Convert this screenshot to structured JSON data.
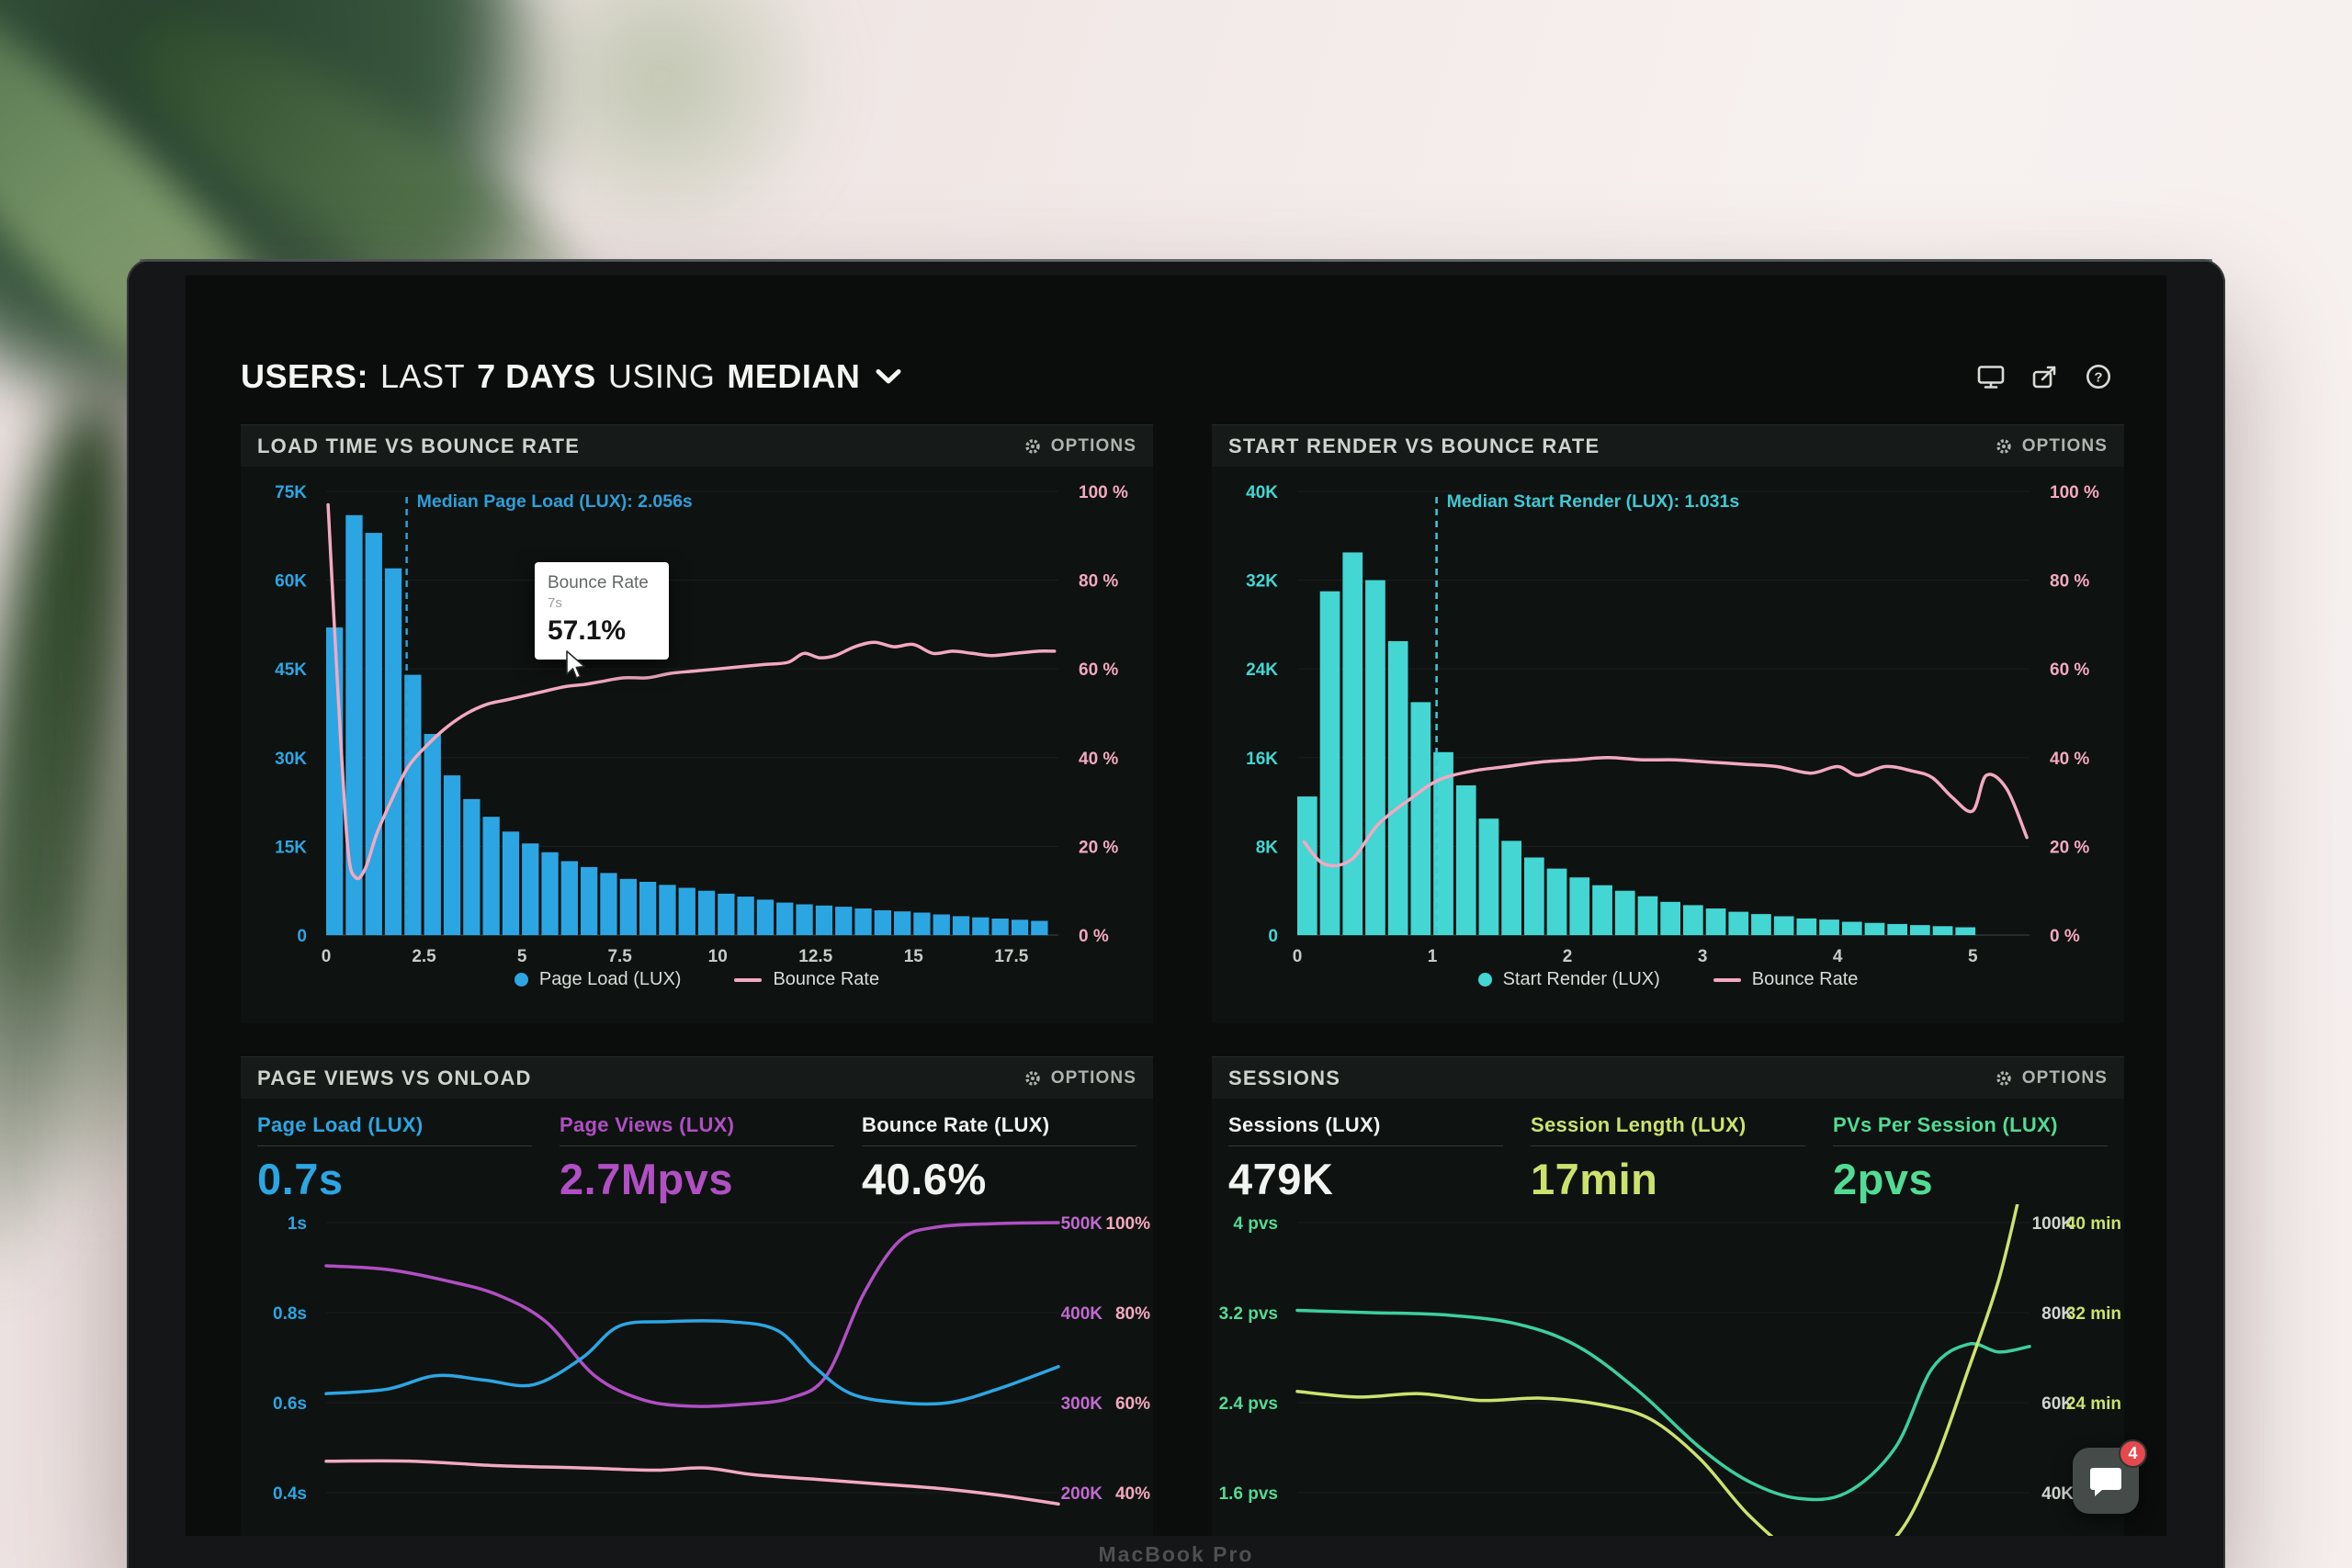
{
  "meta": {
    "device_label": "MacBook Pro"
  },
  "header": {
    "title_segments": [
      {
        "text": "USERS:",
        "weight": "bold"
      },
      {
        "text": "LAST",
        "weight": "light"
      },
      {
        "text": "7 DAYS",
        "weight": "bold"
      },
      {
        "text": "USING",
        "weight": "light"
      },
      {
        "text": "MEDIAN",
        "weight": "bold"
      }
    ],
    "icons": [
      "display-icon",
      "share-icon",
      "help-icon"
    ]
  },
  "launcher": {
    "badge_count": "4"
  },
  "chart_data": [
    {
      "type": "bar",
      "title": "LOAD TIME VS BOUNCE RATE",
      "options_label": "OPTIONS",
      "bin_width": 0.5,
      "bar_series": {
        "name": "Page Load (LUX)",
        "color": "#2ca6e3",
        "values_k": [
          52,
          71,
          68,
          62,
          44,
          34,
          27,
          23,
          20,
          17.5,
          15.5,
          14,
          12.5,
          11.5,
          10.5,
          9.5,
          9,
          8.5,
          8,
          7.5,
          7,
          6.5,
          6,
          5.5,
          5.2,
          5,
          4.8,
          4.5,
          4.2,
          4,
          3.8,
          3.5,
          3.2,
          3,
          2.8,
          2.6,
          2.4
        ]
      },
      "line_series": {
        "name": "Bounce Rate",
        "color": "#f3a9c0",
        "points": [
          [
            0.05,
            97
          ],
          [
            0.3,
            55
          ],
          [
            0.55,
            20
          ],
          [
            0.75,
            13
          ],
          [
            1.0,
            15
          ],
          [
            1.3,
            23
          ],
          [
            1.7,
            31
          ],
          [
            2.1,
            38
          ],
          [
            2.6,
            43
          ],
          [
            3.1,
            47
          ],
          [
            3.6,
            50
          ],
          [
            4.1,
            52
          ],
          [
            4.6,
            53
          ],
          [
            5.1,
            54
          ],
          [
            5.6,
            55
          ],
          [
            6.1,
            56
          ],
          [
            6.6,
            56.5
          ],
          [
            7.0,
            57.1
          ],
          [
            7.6,
            58
          ],
          [
            8.2,
            58
          ],
          [
            8.8,
            59
          ],
          [
            9.4,
            59.5
          ],
          [
            10.0,
            60
          ],
          [
            10.6,
            60.5
          ],
          [
            11.2,
            61
          ],
          [
            11.8,
            61.5
          ],
          [
            12.2,
            63.5
          ],
          [
            12.6,
            62.5
          ],
          [
            13.0,
            63
          ],
          [
            13.5,
            65
          ],
          [
            14.0,
            66
          ],
          [
            14.5,
            65
          ],
          [
            15.0,
            65.5
          ],
          [
            15.5,
            63.5
          ],
          [
            16.0,
            64
          ],
          [
            16.5,
            63.5
          ],
          [
            17.0,
            63
          ],
          [
            17.6,
            63.5
          ],
          [
            18.2,
            64
          ],
          [
            18.6,
            64
          ]
        ]
      },
      "median": {
        "label": "Median Page Load (LUX): 2.056s",
        "value": 2.056,
        "color": "#2d9fd8"
      },
      "left_axis": {
        "ticks": [
          "75K",
          "60K",
          "45K",
          "30K",
          "15K",
          "0"
        ],
        "max_k": 75,
        "color": "#2ca6e3"
      },
      "right_axis": {
        "ticks": [
          "100 %",
          "80 %",
          "60 %",
          "40 %",
          "20 %",
          "0 %"
        ],
        "max_pct": 100,
        "color": "#f3a9c0"
      },
      "x_axis": {
        "ticks": [
          0,
          2.5,
          5,
          7.5,
          10,
          12.5,
          15,
          17.5
        ],
        "range": 18.7
      },
      "legend": [
        {
          "label": "Page Load (LUX)",
          "color": "#2ca6e3",
          "shape": "dot"
        },
        {
          "label": "Bounce Rate",
          "color": "#f3a9c0",
          "shape": "line"
        }
      ],
      "tooltip": {
        "title": "Bounce Rate",
        "x_label": "7s",
        "value": "57.1%"
      }
    },
    {
      "type": "bar",
      "title": "START RENDER VS BOUNCE RATE",
      "options_label": "OPTIONS",
      "bin_width": 0.168,
      "bar_series": {
        "name": "Start Render (LUX)",
        "color": "#43d6d3",
        "values_k": [
          12.5,
          31,
          34.5,
          32,
          26.5,
          21,
          16.5,
          13.5,
          10.5,
          8.5,
          7,
          6,
          5.2,
          4.5,
          4,
          3.5,
          3,
          2.7,
          2.4,
          2.1,
          1.9,
          1.7,
          1.5,
          1.4,
          1.2,
          1.1,
          1,
          0.9,
          0.8,
          0.7
        ]
      },
      "line_series": {
        "name": "Bounce Rate",
        "color": "#f3a9c0",
        "points": [
          [
            0.05,
            21
          ],
          [
            0.2,
            16
          ],
          [
            0.4,
            17
          ],
          [
            0.6,
            25
          ],
          [
            0.85,
            31
          ],
          [
            1.05,
            35
          ],
          [
            1.3,
            37
          ],
          [
            1.55,
            38
          ],
          [
            1.8,
            39
          ],
          [
            2.05,
            39.5
          ],
          [
            2.3,
            40
          ],
          [
            2.55,
            39.5
          ],
          [
            2.8,
            39.5
          ],
          [
            3.05,
            39
          ],
          [
            3.3,
            38.5
          ],
          [
            3.55,
            38
          ],
          [
            3.8,
            36.5
          ],
          [
            4.0,
            38
          ],
          [
            4.15,
            36
          ],
          [
            4.35,
            38
          ],
          [
            4.55,
            37
          ],
          [
            4.7,
            35.5
          ],
          [
            4.85,
            31
          ],
          [
            5.0,
            28
          ],
          [
            5.1,
            36
          ],
          [
            5.25,
            33
          ],
          [
            5.4,
            22
          ]
        ]
      },
      "median": {
        "label": "Median Start Render (LUX): 1.031s",
        "value": 1.031,
        "color": "#3fc9d4"
      },
      "left_axis": {
        "ticks": [
          "40K",
          "32K",
          "24K",
          "16K",
          "8K",
          "0"
        ],
        "max_k": 40,
        "color": "#43d6d3"
      },
      "right_axis": {
        "ticks": [
          "100 %",
          "80 %",
          "60 %",
          "40 %",
          "20 %",
          "0 %"
        ],
        "max_pct": 100,
        "color": "#f3a9c0"
      },
      "x_axis": {
        "ticks": [
          0,
          1,
          2,
          3,
          4,
          5
        ],
        "range": 5.42
      },
      "legend": [
        {
          "label": "Start Render (LUX)",
          "color": "#43d6d3",
          "shape": "dot"
        },
        {
          "label": "Bounce Rate",
          "color": "#f3a9c0",
          "shape": "line"
        }
      ]
    },
    {
      "type": "line",
      "title": "PAGE VIEWS VS ONLOAD",
      "options_label": "OPTIONS",
      "metrics": [
        {
          "label": "Page Load (LUX)",
          "value": "0.7s",
          "color": "#2ca6e3"
        },
        {
          "label": "Page Views (LUX)",
          "value": "2.7Mpvs",
          "color": "#b14fc4"
        },
        {
          "label": "Bounce Rate (LUX)",
          "value": "40.6%",
          "color": "#f2f4f2"
        }
      ],
      "left_axis": {
        "ticks": [
          "1s",
          "0.8s",
          "0.6s",
          "0.4s"
        ],
        "color": "#2ca6e3"
      },
      "right_axis": {
        "ticks": [
          [
            "500K",
            "100%"
          ],
          [
            "400K",
            "80%"
          ],
          [
            "300K",
            "60%"
          ],
          [
            "200K",
            "40%"
          ]
        ],
        "colors": [
          "#c06ad0",
          "#f3a9c0"
        ]
      },
      "x_max": 6,
      "series": [
        {
          "name": "Page Views",
          "color": "#b14fc4",
          "scale": {
            "top": 500,
            "step": 100
          },
          "points": [
            [
              0,
              452
            ],
            [
              0.5,
              448
            ],
            [
              1,
              435
            ],
            [
              1.4,
              420
            ],
            [
              1.8,
              390
            ],
            [
              2.2,
              330
            ],
            [
              2.6,
              303
            ],
            [
              3,
              296
            ],
            [
              3.4,
              298
            ],
            [
              3.8,
              305
            ],
            [
              4.1,
              330
            ],
            [
              4.4,
              420
            ],
            [
              4.7,
              480
            ],
            [
              5,
              495
            ],
            [
              5.5,
              499
            ],
            [
              6,
              500
            ]
          ]
        },
        {
          "name": "Page Load",
          "color": "#2ca6e3",
          "scale": {
            "top": 1.0,
            "step": 0.2
          },
          "points": [
            [
              0,
              0.62
            ],
            [
              0.5,
              0.63
            ],
            [
              0.9,
              0.66
            ],
            [
              1.3,
              0.65
            ],
            [
              1.7,
              0.64
            ],
            [
              2.1,
              0.7
            ],
            [
              2.4,
              0.77
            ],
            [
              2.8,
              0.78
            ],
            [
              3.3,
              0.78
            ],
            [
              3.7,
              0.76
            ],
            [
              4.0,
              0.68
            ],
            [
              4.3,
              0.62
            ],
            [
              4.7,
              0.6
            ],
            [
              5.1,
              0.6
            ],
            [
              5.5,
              0.63
            ],
            [
              6,
              0.68
            ]
          ]
        },
        {
          "name": "Bounce Rate",
          "color": "#f3a9c0",
          "scale": {
            "top": 100,
            "step": 20
          },
          "points": [
            [
              0,
              47
            ],
            [
              0.7,
              47
            ],
            [
              1.4,
              46
            ],
            [
              2.1,
              45.5
            ],
            [
              2.7,
              45
            ],
            [
              3.1,
              45.5
            ],
            [
              3.5,
              44
            ],
            [
              4.0,
              43
            ],
            [
              4.5,
              42
            ],
            [
              5.0,
              41
            ],
            [
              5.5,
              39.5
            ],
            [
              6,
              37.5
            ]
          ]
        }
      ]
    },
    {
      "type": "line",
      "title": "SESSIONS",
      "options_label": "OPTIONS",
      "metrics": [
        {
          "label": "Sessions (LUX)",
          "value": "479K",
          "color": "#f2f4f2"
        },
        {
          "label": "Session Length (LUX)",
          "value": "17min",
          "color": "#cde26e"
        },
        {
          "label": "PVs Per Session (LUX)",
          "value": "2pvs",
          "color": "#52db94"
        }
      ],
      "left_axis": {
        "ticks": [
          "4 pvs",
          "3.2 pvs",
          "2.4 pvs",
          "1.6 pvs"
        ],
        "color": "#52db94"
      },
      "right_axis": {
        "ticks": [
          [
            "100K",
            "40 min"
          ],
          [
            "80K",
            "32 min"
          ],
          [
            "60K",
            "24 min"
          ],
          [
            "40K",
            ""
          ]
        ],
        "colors": [
          "#cfd6d2",
          "#cde26e"
        ]
      },
      "x_max": 6,
      "series": [
        {
          "name": "PVs Per Session",
          "color": "#3ccf9f",
          "scale": {
            "top": 4,
            "step": 0.8
          },
          "points": [
            [
              0,
              3.22
            ],
            [
              0.6,
              3.2
            ],
            [
              1.2,
              3.18
            ],
            [
              1.8,
              3.1
            ],
            [
              2.3,
              2.9
            ],
            [
              2.8,
              2.5
            ],
            [
              3.3,
              2.0
            ],
            [
              3.7,
              1.7
            ],
            [
              4.1,
              1.55
            ],
            [
              4.5,
              1.6
            ],
            [
              4.9,
              2.0
            ],
            [
              5.2,
              2.7
            ],
            [
              5.5,
              2.92
            ],
            [
              5.75,
              2.85
            ],
            [
              6,
              2.9
            ]
          ]
        },
        {
          "name": "Session Length",
          "color": "#cde26e",
          "scale": {
            "top": 40,
            "step": 8
          },
          "points": [
            [
              0,
              25
            ],
            [
              0.5,
              24.5
            ],
            [
              1,
              24.8
            ],
            [
              1.5,
              24.2
            ],
            [
              2,
              24.4
            ],
            [
              2.5,
              23.8
            ],
            [
              2.9,
              22.5
            ],
            [
              3.3,
              19
            ],
            [
              3.7,
              14
            ],
            [
              4.1,
              10.5
            ],
            [
              4.5,
              9.5
            ],
            [
              4.9,
              12
            ],
            [
              5.2,
              18
            ],
            [
              5.5,
              27
            ],
            [
              5.75,
              35
            ],
            [
              5.95,
              44
            ]
          ]
        }
      ]
    }
  ]
}
